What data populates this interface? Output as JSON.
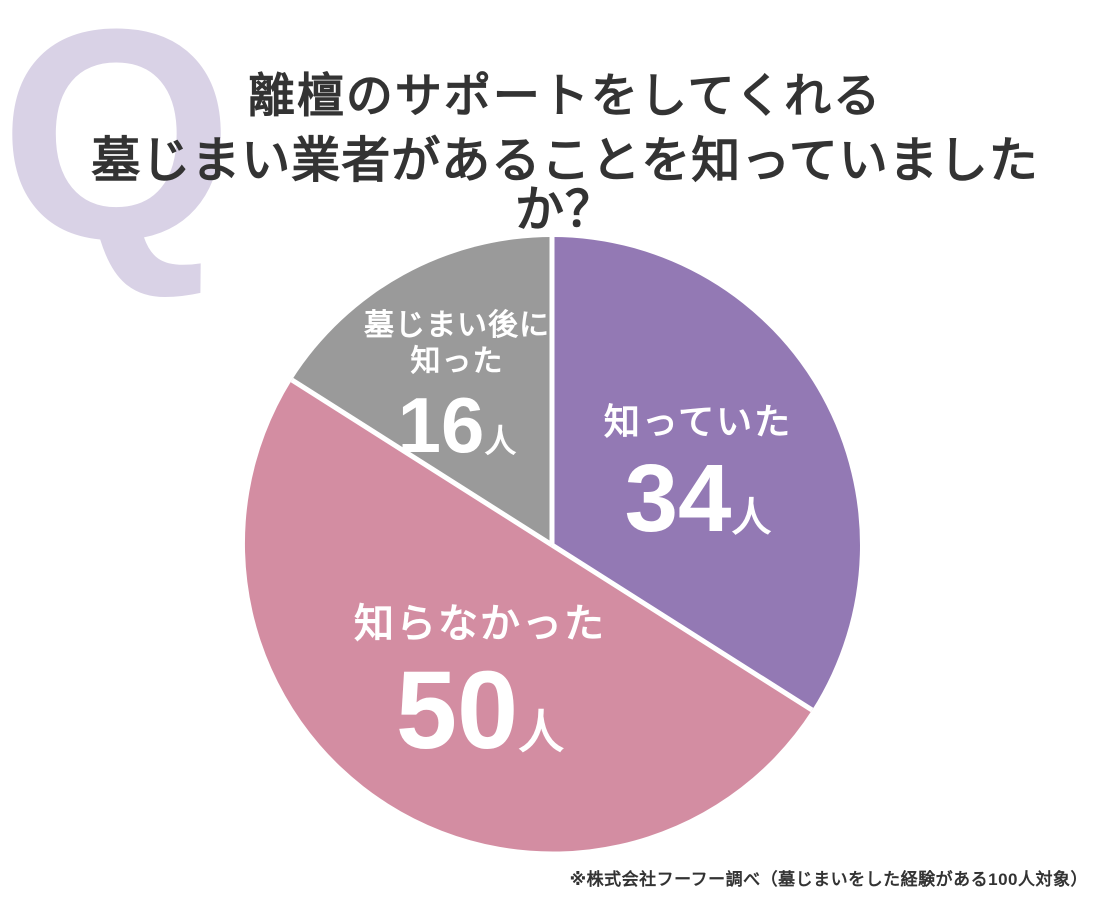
{
  "header": {
    "q_mark": "Q",
    "title_line1": "離檀のサポートをしてくれる",
    "title_line2": "墓じまい業者があることを知っていましたか？"
  },
  "footnote": "※株式会社フーフー調べ（墓じまいをした経験がある100人対象）",
  "colors": {
    "purple": "#9379B4",
    "pink": "#D38DA2",
    "gray": "#9A9A9A",
    "q_lavender": "#D9D2E6",
    "title_text": "#333333",
    "divider_white": "#FFFFFF"
  },
  "chart_data": {
    "type": "pie",
    "title": "離檀のサポートをしてくれる墓じまい業者があることを知っていましたか？",
    "total": 100,
    "unit": "人",
    "start_angle_deg": 0,
    "direction": "clockwise",
    "labels_inside": true,
    "legend": "none",
    "slices": [
      {
        "label": "知っていた",
        "value": 34,
        "unit": "人",
        "color": "#9379B4"
      },
      {
        "label": "知らなかった",
        "value": 50,
        "unit": "人",
        "color": "#D38DA2"
      },
      {
        "label": "墓じまい後に知った",
        "label_line1": "墓じまい後に",
        "label_line2": "知った",
        "value": 16,
        "unit": "人",
        "color": "#9A9A9A"
      }
    ]
  }
}
